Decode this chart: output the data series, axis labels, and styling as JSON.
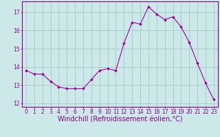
{
  "x": [
    0,
    1,
    2,
    3,
    4,
    5,
    6,
    7,
    8,
    9,
    10,
    11,
    12,
    13,
    14,
    15,
    16,
    17,
    18,
    19,
    20,
    21,
    22,
    23
  ],
  "y": [
    13.8,
    13.6,
    13.6,
    13.2,
    12.9,
    12.8,
    12.8,
    12.8,
    13.3,
    13.8,
    13.9,
    13.8,
    15.3,
    16.45,
    16.35,
    17.3,
    16.9,
    16.6,
    16.75,
    16.2,
    15.35,
    14.2,
    13.1,
    12.2
  ],
  "line_color": "#990099",
  "marker": "D",
  "marker_size": 2.0,
  "bg_color": "#cce8e8",
  "grid_color": "#aacccc",
  "xlabel": "Windchill (Refroidissement éolien,°C)",
  "ylabel_ticks": [
    12,
    13,
    14,
    15,
    16,
    17
  ],
  "xlim": [
    -0.5,
    23.5
  ],
  "ylim": [
    11.8,
    17.6
  ],
  "xticks": [
    0,
    1,
    2,
    3,
    4,
    5,
    6,
    7,
    8,
    9,
    10,
    11,
    12,
    13,
    14,
    15,
    16,
    17,
    18,
    19,
    20,
    21,
    22,
    23
  ],
  "tick_fontsize": 5.5,
  "xlabel_fontsize": 7.0,
  "tick_color": "#880088",
  "spine_color": "#880088"
}
